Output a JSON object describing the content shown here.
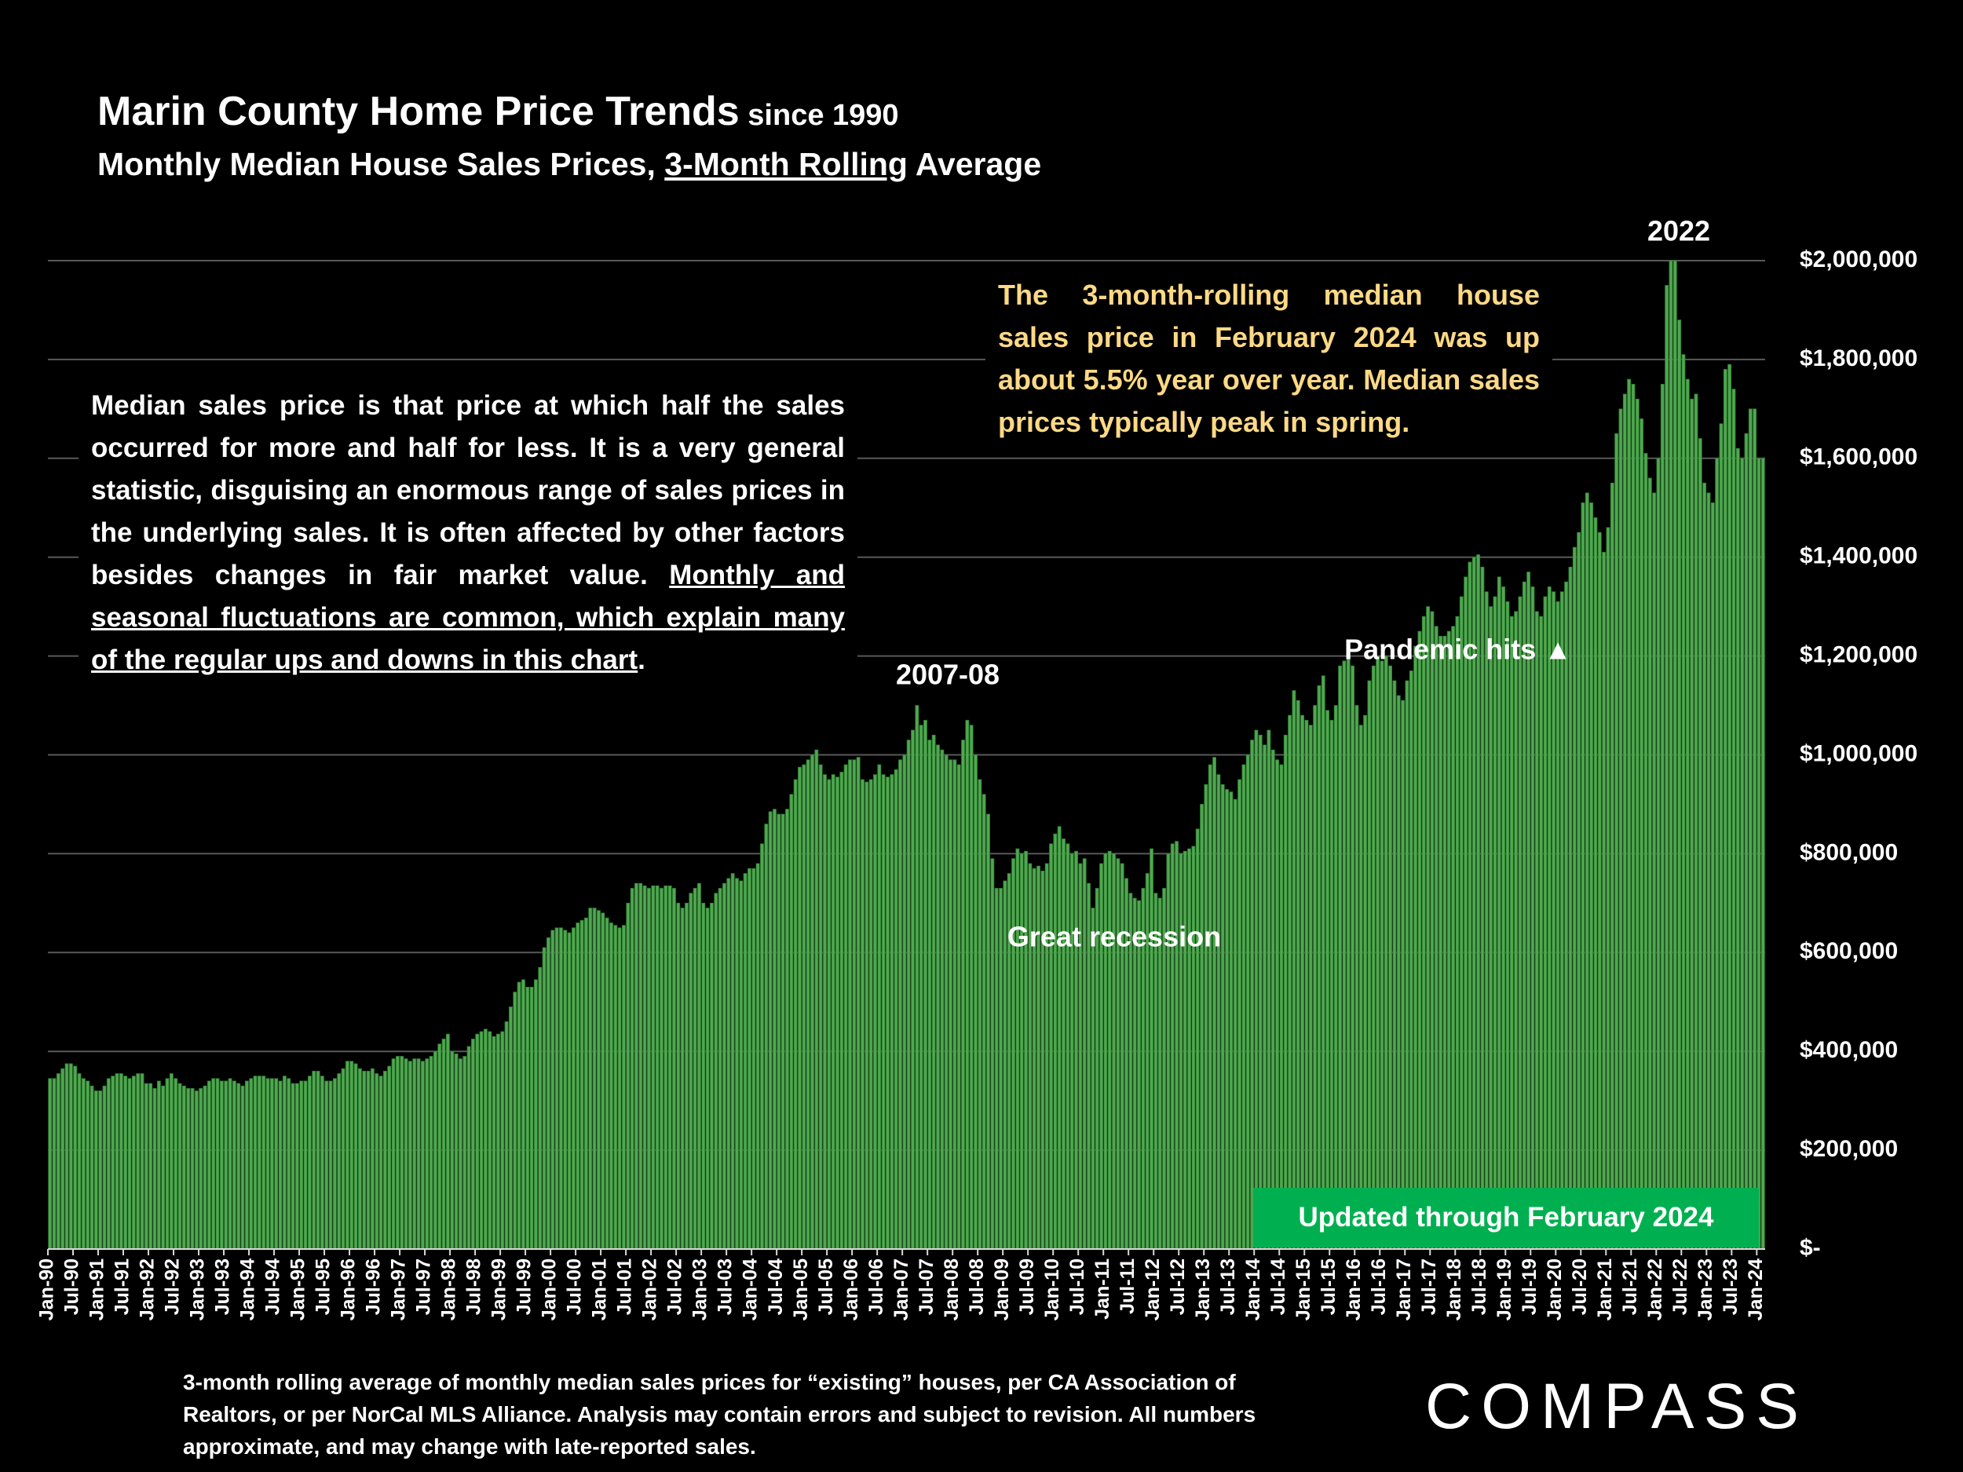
{
  "chart_data": {
    "type": "bar",
    "title": "Marin County Home Price Trends",
    "title_suffix": " since 1990",
    "subtitle": [
      "Monthly Median House Sales Prices, ",
      "3-Month Rolling",
      " Average"
    ],
    "note_left": [
      "Median sales price is that price at which half the sales occurred for more and half for less. It is a very general statistic, disguising an enormous range of sales prices in the underlying sales. It is often affected by other factors besides changes in fair market value. ",
      "Monthly and seasonal fluctuations are common, which explain many of the regular ups and downs in this chart",
      "."
    ],
    "note_right": "The 3-month-rolling median house sales price in February 2024 was up about 5.5% year over year. Median sales prices typically peak in spring.",
    "annotations": [
      "2007-08",
      "Great recession",
      "Pandemic hits ▲",
      "2022"
    ],
    "badge": "Updated through February 2024",
    "footnote": "3-month rolling average of monthly median sales prices for “existing” houses, per CA Association of Realtors, or per NorCal MLS Alliance. Analysis may contain errors and subject to revision. All numbers approximate, and may change with late-reported sales.",
    "brand": "COMPASS",
    "color": "#4fa84f",
    "grid": true,
    "ylim": [
      0,
      2000000
    ],
    "yticks": [
      {
        "value": 0,
        "label": "$-"
      },
      {
        "value": 200000,
        "label": "$200,000"
      },
      {
        "value": 400000,
        "label": "$400,000"
      },
      {
        "value": 600000,
        "label": "$600,000"
      },
      {
        "value": 800000,
        "label": "$800,000"
      },
      {
        "value": 1000000,
        "label": "$1,000,000"
      },
      {
        "value": 1200000,
        "label": "$1,200,000"
      },
      {
        "value": 1400000,
        "label": "$1,400,000"
      },
      {
        "value": 1600000,
        "label": "$1,600,000"
      },
      {
        "value": 1800000,
        "label": "$1,800,000"
      },
      {
        "value": 2000000,
        "label": "$2,000,000"
      }
    ],
    "categories": [
      "Jan-90",
      null,
      null,
      null,
      null,
      null,
      "Jul-90",
      null,
      null,
      null,
      null,
      null,
      "Jan-91",
      null,
      null,
      null,
      null,
      null,
      "Jul-91",
      null,
      null,
      null,
      null,
      null,
      "Jan-92",
      null,
      null,
      null,
      null,
      null,
      "Jul-92",
      null,
      null,
      null,
      null,
      null,
      "Jan-93",
      null,
      null,
      null,
      null,
      null,
      "Jul-93",
      null,
      null,
      null,
      null,
      null,
      "Jan-94",
      null,
      null,
      null,
      null,
      null,
      "Jul-94",
      null,
      null,
      null,
      null,
      null,
      "Jan-95",
      null,
      null,
      null,
      null,
      null,
      "Jul-95",
      null,
      null,
      null,
      null,
      null,
      "Jan-96",
      null,
      null,
      null,
      null,
      null,
      "Jul-96",
      null,
      null,
      null,
      null,
      null,
      "Jan-97",
      null,
      null,
      null,
      null,
      null,
      "Jul-97",
      null,
      null,
      null,
      null,
      null,
      "Jan-98",
      null,
      null,
      null,
      null,
      null,
      "Jul-98",
      null,
      null,
      null,
      null,
      null,
      "Jan-99",
      null,
      null,
      null,
      null,
      null,
      "Jul-99",
      null,
      null,
      null,
      null,
      null,
      "Jan-00",
      null,
      null,
      null,
      null,
      null,
      "Jul-00",
      null,
      null,
      null,
      null,
      null,
      "Jan-01",
      null,
      null,
      null,
      null,
      null,
      "Jul-01",
      null,
      null,
      null,
      null,
      null,
      "Jan-02",
      null,
      null,
      null,
      null,
      null,
      "Jul-02",
      null,
      null,
      null,
      null,
      null,
      "Jan-03",
      null,
      null,
      null,
      null,
      null,
      "Jul-03",
      null,
      null,
      null,
      null,
      null,
      "Jan-04",
      null,
      null,
      null,
      null,
      null,
      "Jul-04",
      null,
      null,
      null,
      null,
      null,
      "Jan-05",
      null,
      null,
      null,
      null,
      null,
      "Jul-05",
      null,
      null,
      null,
      null,
      null,
      "Jan-06",
      null,
      null,
      null,
      null,
      null,
      "Jul-06",
      null,
      null,
      null,
      null,
      null,
      "Jan-07",
      null,
      null,
      null,
      null,
      null,
      "Jul-07",
      null,
      null,
      null,
      null,
      null,
      "Jan-08",
      null,
      null,
      null,
      null,
      null,
      "Jul-08",
      null,
      null,
      null,
      null,
      null,
      "Jan-09",
      null,
      null,
      null,
      null,
      null,
      "Jul-09",
      null,
      null,
      null,
      null,
      null,
      "Jan-10",
      null,
      null,
      null,
      null,
      null,
      "Jul-10",
      null,
      null,
      null,
      null,
      null,
      "Jan-11",
      null,
      null,
      null,
      null,
      null,
      "Jul-11",
      null,
      null,
      null,
      null,
      null,
      "Jan-12",
      null,
      null,
      null,
      null,
      null,
      "Jul-12",
      null,
      null,
      null,
      null,
      null,
      "Jan-13",
      null,
      null,
      null,
      null,
      null,
      "Jul-13",
      null,
      null,
      null,
      null,
      null,
      "Jan-14",
      null,
      null,
      null,
      null,
      null,
      "Jul-14",
      null,
      null,
      null,
      null,
      null,
      "Jan-15",
      null,
      null,
      null,
      null,
      null,
      "Jul-15",
      null,
      null,
      null,
      null,
      null,
      "Jan-16",
      null,
      null,
      null,
      null,
      null,
      "Jul-16",
      null,
      null,
      null,
      null,
      null,
      "Jan-17",
      null,
      null,
      null,
      null,
      null,
      "Jul-17",
      null,
      null,
      null,
      null,
      null,
      "Jan-18",
      null,
      null,
      null,
      null,
      null,
      "Jul-18",
      null,
      null,
      null,
      null,
      null,
      "Jan-19",
      null,
      null,
      null,
      null,
      null,
      "Jul-19",
      null,
      null,
      null,
      null,
      null,
      "Jan-20",
      null,
      null,
      null,
      null,
      null,
      "Jul-20",
      null,
      null,
      null,
      null,
      null,
      "Jan-21",
      null,
      null,
      null,
      null,
      null,
      "Jul-21",
      null,
      null,
      null,
      null,
      null,
      "Jan-22",
      null,
      null,
      null,
      null,
      null,
      "Jul-22",
      null,
      null,
      null,
      null,
      null,
      "Jan-23",
      null,
      null,
      null,
      null,
      null,
      "Jul-23",
      null,
      null,
      null,
      null,
      null,
      "Jan-24",
      null
    ],
    "values": [
      345000,
      345000,
      355000,
      365000,
      375000,
      375000,
      370000,
      355000,
      345000,
      340000,
      330000,
      320000,
      320000,
      330000,
      345000,
      350000,
      355000,
      355000,
      350000,
      345000,
      350000,
      355000,
      355000,
      335000,
      335000,
      325000,
      340000,
      330000,
      345000,
      355000,
      345000,
      335000,
      330000,
      325000,
      325000,
      320000,
      325000,
      330000,
      340000,
      345000,
      345000,
      340000,
      340000,
      345000,
      340000,
      335000,
      330000,
      340000,
      345000,
      350000,
      350000,
      350000,
      345000,
      345000,
      345000,
      340000,
      350000,
      345000,
      335000,
      335000,
      340000,
      340000,
      350000,
      360000,
      360000,
      350000,
      340000,
      340000,
      345000,
      355000,
      365000,
      380000,
      380000,
      375000,
      365000,
      360000,
      360000,
      365000,
      355000,
      350000,
      360000,
      370000,
      385000,
      390000,
      390000,
      385000,
      380000,
      385000,
      385000,
      380000,
      385000,
      390000,
      400000,
      415000,
      425000,
      435000,
      400000,
      395000,
      385000,
      390000,
      410000,
      425000,
      435000,
      440000,
      445000,
      440000,
      430000,
      435000,
      440000,
      460000,
      490000,
      520000,
      540000,
      545000,
      530000,
      530000,
      545000,
      570000,
      610000,
      630000,
      645000,
      650000,
      650000,
      645000,
      640000,
      650000,
      660000,
      665000,
      670000,
      690000,
      690000,
      685000,
      680000,
      670000,
      660000,
      655000,
      650000,
      655000,
      700000,
      730000,
      740000,
      740000,
      735000,
      730000,
      735000,
      735000,
      730000,
      735000,
      735000,
      730000,
      700000,
      690000,
      700000,
      720000,
      730000,
      740000,
      700000,
      690000,
      700000,
      720000,
      730000,
      740000,
      750000,
      760000,
      750000,
      745000,
      760000,
      770000,
      770000,
      780000,
      820000,
      860000,
      885000,
      890000,
      880000,
      880000,
      890000,
      920000,
      950000,
      975000,
      980000,
      990000,
      1000000,
      1010000,
      980000,
      960000,
      950000,
      960000,
      955000,
      965000,
      980000,
      990000,
      990000,
      995000,
      950000,
      945000,
      950000,
      960000,
      980000,
      960000,
      955000,
      960000,
      970000,
      990000,
      1000000,
      1030000,
      1050000,
      1100000,
      1060000,
      1070000,
      1030000,
      1040000,
      1020000,
      1010000,
      1000000,
      990000,
      990000,
      980000,
      1030000,
      1070000,
      1060000,
      1000000,
      950000,
      920000,
      880000,
      790000,
      730000,
      730000,
      745000,
      760000,
      790000,
      810000,
      800000,
      805000,
      780000,
      770000,
      775000,
      765000,
      780000,
      820000,
      840000,
      855000,
      830000,
      820000,
      800000,
      805000,
      780000,
      790000,
      740000,
      690000,
      730000,
      780000,
      800000,
      805000,
      800000,
      790000,
      780000,
      750000,
      720000,
      710000,
      705000,
      730000,
      760000,
      810000,
      720000,
      710000,
      730000,
      800000,
      820000,
      825000,
      800000,
      805000,
      810000,
      815000,
      850000,
      900000,
      940000,
      980000,
      995000,
      960000,
      940000,
      930000,
      925000,
      910000,
      950000,
      980000,
      1000000,
      1030000,
      1050000,
      1040000,
      1020000,
      1050000,
      1010000,
      990000,
      980000,
      1040000,
      1080000,
      1130000,
      1110000,
      1080000,
      1070000,
      1060000,
      1100000,
      1140000,
      1160000,
      1090000,
      1070000,
      1100000,
      1180000,
      1190000,
      1200000,
      1180000,
      1100000,
      1060000,
      1080000,
      1150000,
      1180000,
      1200000,
      1190000,
      1200000,
      1180000,
      1150000,
      1120000,
      1110000,
      1150000,
      1170000,
      1220000,
      1250000,
      1280000,
      1300000,
      1290000,
      1260000,
      1240000,
      1240000,
      1250000,
      1260000,
      1280000,
      1320000,
      1360000,
      1390000,
      1400000,
      1405000,
      1380000,
      1330000,
      1300000,
      1320000,
      1360000,
      1340000,
      1310000,
      1280000,
      1290000,
      1320000,
      1350000,
      1370000,
      1340000,
      1290000,
      1280000,
      1320000,
      1340000,
      1330000,
      1310000,
      1330000,
      1350000,
      1380000,
      1420000,
      1450000,
      1510000,
      1530000,
      1510000,
      1480000,
      1450000,
      1410000,
      1460000,
      1550000,
      1650000,
      1700000,
      1730000,
      1760000,
      1750000,
      1720000,
      1680000,
      1610000,
      1560000,
      1530000,
      1600000,
      1750000,
      1950000,
      2000000,
      2000000,
      1880000,
      1810000,
      1760000,
      1720000,
      1730000,
      1640000,
      1550000,
      1530000,
      1510000,
      1600000,
      1670000,
      1780000,
      1790000,
      1740000,
      1620000,
      1600000,
      1650000,
      1700000,
      1700000,
      1600000,
      1600000
    ]
  }
}
